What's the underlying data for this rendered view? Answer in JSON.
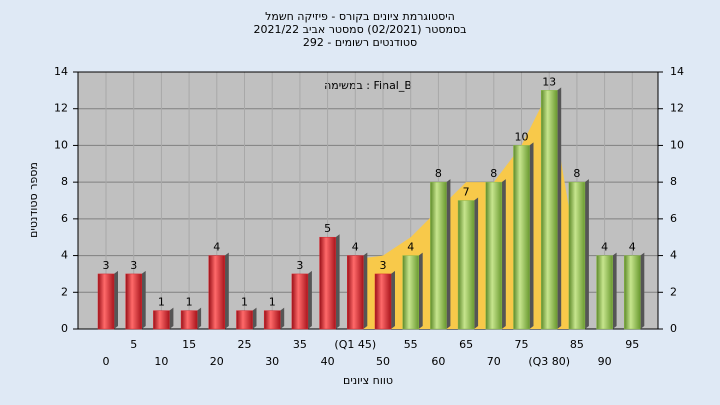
{
  "chart_data": {
    "type": "bar",
    "title": [
      "היסטוגרמת ציונים בקורס - פיזיקה חשמל",
      "בסמסטר  (02/2021)  סמסטר אביב 2021/22",
      "סטודנטים רשומים - 292"
    ],
    "annotation": "במשימה : Final_B",
    "y_label": "מספר סטודנטים",
    "x_label": "טווח ציונים",
    "categories": [
      "0",
      "5",
      "10",
      "15",
      "20",
      "25",
      "30",
      "35",
      "40",
      "(Q1 45)",
      "50",
      "55",
      "60",
      "65",
      "70",
      "75",
      "(Q3 80)",
      "85",
      "90",
      "95"
    ],
    "values": [
      3,
      3,
      1,
      1,
      4,
      1,
      1,
      3,
      5,
      4,
      3,
      4,
      8,
      7,
      8,
      10,
      13,
      8,
      4,
      4
    ],
    "colors": [
      "#d9262e",
      "#d9262e",
      "#d9262e",
      "#d9262e",
      "#d9262e",
      "#d9262e",
      "#d9262e",
      "#d9262e",
      "#d9262e",
      "#d9262e",
      "#d9262e",
      "#8ab94a",
      "#8ab94a",
      "#8ab94a",
      "#8ab94a",
      "#8ab94a",
      "#8ab94a",
      "#8ab94a",
      "#8ab94a",
      "#8ab94a"
    ],
    "area_values": [
      null,
      null,
      null,
      null,
      null,
      null,
      null,
      null,
      null,
      3.8,
      4,
      5,
      6.5,
      8,
      8,
      10,
      13,
      4,
      null,
      null
    ],
    "area_color": "#f8c94a",
    "ylim": [
      0,
      14
    ],
    "yticks": [
      0,
      2,
      4,
      6,
      8,
      10,
      12,
      14
    ],
    "grid": true
  }
}
